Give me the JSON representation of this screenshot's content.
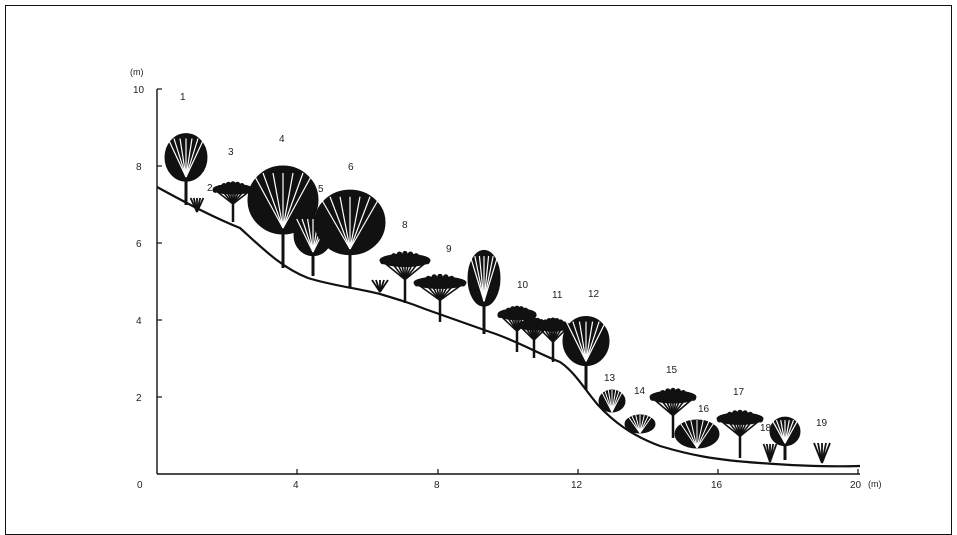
{
  "y_axis": {
    "unit": "(m)",
    "ticks": [
      "10",
      "8",
      "6",
      "4",
      "2"
    ]
  },
  "x_axis": {
    "unit": "(m)",
    "ticks": [
      "0",
      "4",
      "8",
      "12",
      "16",
      "20"
    ]
  },
  "plants": [
    "1",
    "2",
    "3",
    "4",
    "5",
    "6",
    "8",
    "9",
    "10",
    "11",
    "12",
    "13",
    "14",
    "15",
    "16",
    "17",
    "18",
    "19"
  ],
  "colors": {
    "ink": "#111111",
    "background": "#ffffff"
  }
}
